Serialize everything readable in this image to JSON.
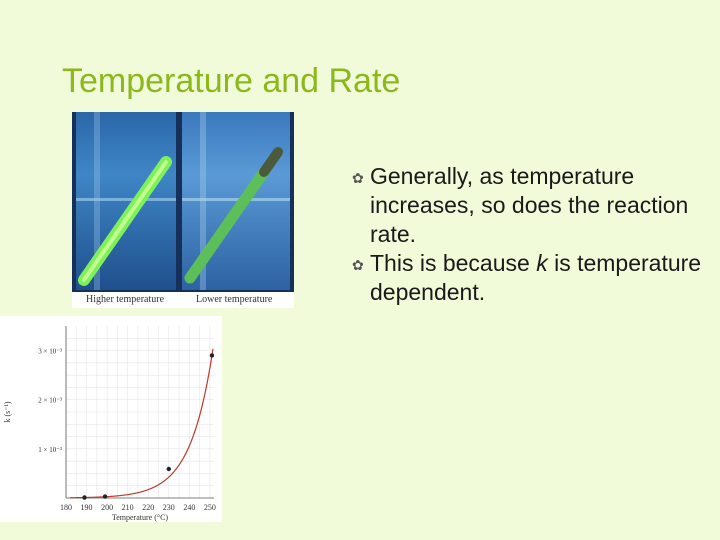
{
  "slide": {
    "title": "Temperature and Rate",
    "bullets": [
      {
        "segments": [
          {
            "text": "Generally, as temperature increases, so does the reaction rate.",
            "italic": false
          }
        ]
      },
      {
        "segments": [
          {
            "text": "This is because ",
            "italic": false
          },
          {
            "text": "k",
            "italic": true
          },
          {
            "text": " is temperature dependent.",
            "italic": false
          }
        ]
      }
    ],
    "bullet_icon": "swoosh-bullet-icon",
    "photo": {
      "caption_left": "Higher temperature",
      "caption_right": "Lower temperature"
    }
  },
  "chart_data": {
    "type": "line",
    "xlabel": "Temperature (°C)",
    "ylabel": "k (s⁻¹)",
    "x_ticks": [
      180,
      190,
      200,
      210,
      220,
      230,
      240,
      250
    ],
    "x_tick_labels": [
      "180",
      "190",
      "200",
      "210",
      "220",
      "230",
      "240",
      "250"
    ],
    "y_tick_labels": [
      "1 × 10⁻³",
      "2 × 10⁻³",
      "3 × 10⁻³"
    ],
    "y_ticks": [
      0.001,
      0.002,
      0.003
    ],
    "xlim": [
      180,
      252
    ],
    "ylim": [
      0,
      0.0035
    ],
    "points": [
      {
        "x": 189,
        "y": 1e-05
      },
      {
        "x": 199,
        "y": 3e-05
      },
      {
        "x": 230,
        "y": 0.00059
      },
      {
        "x": 251,
        "y": 0.0029
      }
    ],
    "curve_color": "#c0392b",
    "grid": true
  }
}
